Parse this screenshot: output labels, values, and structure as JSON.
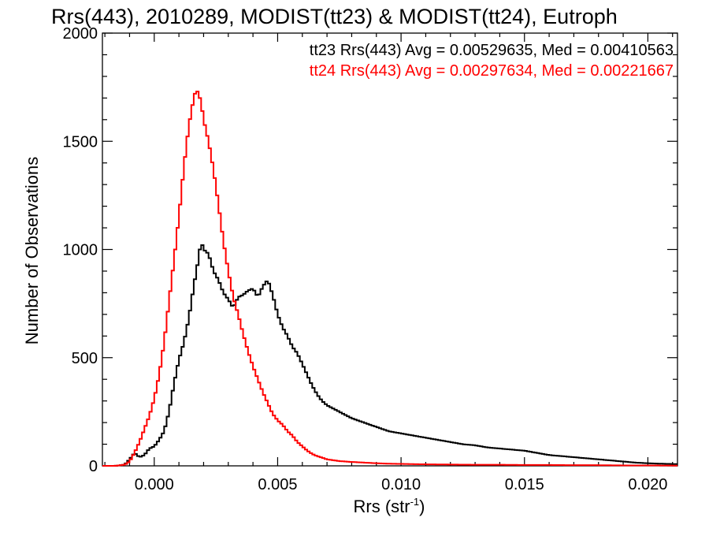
{
  "chart_data": {
    "type": "line",
    "title": "Rrs(443), 2010289, MODIST(tt23) & MODIST(tt24), Eutroph",
    "xlabel": "Rrs (str",
    "xlabel_sup": "-1",
    "xlabel_close": ")",
    "ylabel": "Number of Observations",
    "xlim": [
      -0.0021,
      0.0212
    ],
    "ylim": [
      0,
      2000
    ],
    "xticks": [
      0.0,
      0.005,
      0.01,
      0.015,
      0.02
    ],
    "xtick_labels": [
      "0.000",
      "0.005",
      "0.010",
      "0.015",
      "0.020"
    ],
    "yticks": [
      0,
      500,
      1000,
      1500,
      2000
    ],
    "ytick_labels": [
      "0",
      "500",
      "1000",
      "1500",
      "2000"
    ],
    "grid": false,
    "legend_position": "top-right",
    "series": [
      {
        "name": "tt23",
        "color": "#000000",
        "label": "tt23 Rrs(443) Avg = 0.00529635, Med = 0.00410563",
        "x": [
          -0.0021,
          -0.0016,
          -0.0012,
          -0.001,
          -0.0008,
          -0.0006,
          -0.0004,
          -0.0002,
          0.0,
          0.0002,
          0.0004,
          0.0006,
          0.0008,
          0.001,
          0.0012,
          0.0014,
          0.0016,
          0.0018,
          0.0019,
          0.002,
          0.0022,
          0.0024,
          0.0026,
          0.0028,
          0.003,
          0.0032,
          0.0034,
          0.0036,
          0.0038,
          0.004,
          0.0042,
          0.0044,
          0.0046,
          0.0048,
          0.005,
          0.0052,
          0.0054,
          0.0056,
          0.0058,
          0.006,
          0.0062,
          0.0064,
          0.0066,
          0.0068,
          0.007,
          0.0075,
          0.008,
          0.0085,
          0.009,
          0.0095,
          0.01,
          0.0105,
          0.011,
          0.0115,
          0.012,
          0.0125,
          0.013,
          0.0135,
          0.014,
          0.0145,
          0.015,
          0.0155,
          0.016,
          0.0165,
          0.017,
          0.0175,
          0.018,
          0.0185,
          0.019,
          0.0195,
          0.02,
          0.0205,
          0.0212
        ],
        "y": [
          0,
          0,
          5,
          30,
          60,
          40,
          50,
          80,
          90,
          120,
          160,
          250,
          380,
          490,
          570,
          680,
          830,
          960,
          1040,
          1000,
          980,
          900,
          860,
          800,
          770,
          730,
          780,
          790,
          810,
          820,
          780,
          830,
          860,
          790,
          700,
          640,
          600,
          550,
          520,
          470,
          420,
          370,
          330,
          300,
          280,
          250,
          220,
          200,
          180,
          160,
          150,
          140,
          130,
          120,
          110,
          100,
          95,
          85,
          80,
          75,
          70,
          60,
          50,
          45,
          40,
          35,
          30,
          25,
          20,
          15,
          12,
          10,
          8
        ]
      },
      {
        "name": "tt24",
        "color": "#ff0000",
        "label": "tt24 Rrs(443) Avg = 0.00297634, Med = 0.00221667",
        "x": [
          -0.0021,
          -0.0016,
          -0.0012,
          -0.001,
          -0.0008,
          -0.0006,
          -0.0004,
          -0.0002,
          0.0,
          0.0002,
          0.0004,
          0.0006,
          0.0008,
          0.001,
          0.0012,
          0.0014,
          0.0016,
          0.0017,
          0.0018,
          0.0019,
          0.002,
          0.0022,
          0.0024,
          0.0026,
          0.0028,
          0.003,
          0.0032,
          0.0034,
          0.0036,
          0.0038,
          0.004,
          0.0042,
          0.0044,
          0.0046,
          0.0048,
          0.005,
          0.0052,
          0.0054,
          0.0056,
          0.0058,
          0.006,
          0.0062,
          0.0064,
          0.0066,
          0.0068,
          0.007,
          0.0075,
          0.008,
          0.0085,
          0.009,
          0.0095,
          0.01,
          0.011,
          0.012,
          0.013,
          0.014,
          0.015,
          0.016,
          0.017,
          0.018,
          0.019,
          0.02,
          0.0212
        ],
        "y": [
          0,
          0,
          5,
          20,
          60,
          110,
          170,
          230,
          310,
          420,
          570,
          760,
          950,
          1150,
          1380,
          1570,
          1700,
          1740,
          1720,
          1680,
          1600,
          1500,
          1370,
          1210,
          1040,
          900,
          780,
          700,
          610,
          530,
          460,
          400,
          340,
          290,
          240,
          210,
          190,
          160,
          140,
          110,
          90,
          70,
          55,
          45,
          38,
          30,
          22,
          18,
          15,
          12,
          10,
          9,
          7,
          6,
          5,
          5,
          4,
          4,
          3,
          3,
          2,
          2,
          1
        ]
      }
    ]
  }
}
